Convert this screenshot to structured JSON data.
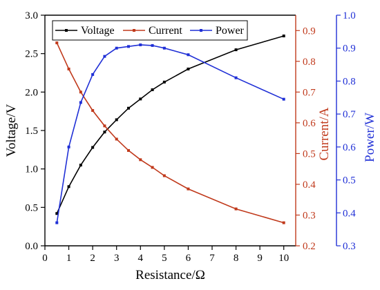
{
  "chart_data": {
    "type": "line",
    "x": [
      0.5,
      1,
      1.5,
      2,
      2.5,
      3,
      3.5,
      4,
      4.5,
      5,
      6,
      8,
      10
    ],
    "series": [
      {
        "name": "Voltage",
        "axis": "left",
        "color": "#000000",
        "values": [
          0.42,
          0.77,
          1.05,
          1.28,
          1.48,
          1.64,
          1.79,
          1.91,
          2.03,
          2.13,
          2.3,
          2.55,
          2.73
        ]
      },
      {
        "name": "Current",
        "axis": "right1",
        "color": "#c0391b",
        "values": [
          0.86,
          0.775,
          0.7,
          0.64,
          0.59,
          0.547,
          0.51,
          0.48,
          0.455,
          0.428,
          0.385,
          0.32,
          0.275
        ]
      },
      {
        "name": "Power",
        "axis": "right2",
        "color": "#1f2fd6",
        "values": [
          0.37,
          0.6,
          0.735,
          0.82,
          0.875,
          0.9,
          0.905,
          0.91,
          0.908,
          0.9,
          0.88,
          0.81,
          0.745
        ]
      }
    ],
    "xlabel": "Resistance/Ω",
    "xlim": [
      0,
      10.5
    ],
    "xticks": [
      "0",
      "1",
      "2",
      "3",
      "4",
      "5",
      "6",
      "7",
      "8",
      "9",
      "10"
    ],
    "axes": {
      "left": {
        "label": "Voltage/V",
        "color": "#000000",
        "lim": [
          0,
          3
        ],
        "ticks": [
          "0.0",
          "0.5",
          "1.0",
          "1.5",
          "2.0",
          "2.5",
          "3.0"
        ]
      },
      "right1": {
        "label": "Current/A",
        "color": "#c0391b",
        "lim": [
          0.2,
          0.95
        ],
        "ticks": [
          "0.2",
          "0.3",
          "0.4",
          "0.5",
          "0.6",
          "0.7",
          "0.8",
          "0.9"
        ]
      },
      "right2": {
        "label": "Power/W",
        "color": "#1f2fd6",
        "lim": [
          0.3,
          1.0
        ],
        "ticks": [
          "0.3",
          "0.4",
          "0.5",
          "0.6",
          "0.7",
          "0.8",
          "0.9",
          "1.0"
        ]
      }
    },
    "legend": "top-left",
    "grid": false
  }
}
